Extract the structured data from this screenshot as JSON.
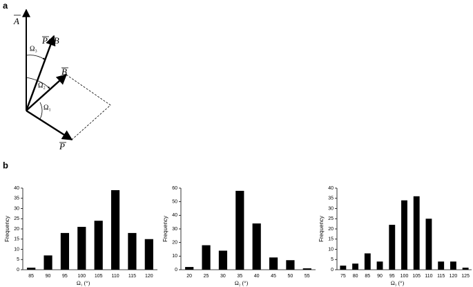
{
  "diagram": {
    "panel_a": "a",
    "panel_b": "b",
    "labels": {
      "A": "A",
      "PxB": "P×B",
      "B": "B",
      "P": "P",
      "omega3": "Ω₃",
      "omega2": "Ω₂",
      "omega1": "Ω₁"
    }
  },
  "chart_data": [
    {
      "type": "bar",
      "x_label": "Ω₁ (°)",
      "y_label": "Frequency",
      "color": "#000000",
      "categories": [
        "85",
        "90",
        "95",
        "100",
        "105",
        "110",
        "115",
        "120"
      ],
      "values": [
        1,
        7,
        18,
        21,
        24,
        39,
        18,
        15
      ],
      "ylim": [
        0,
        40
      ],
      "yticks": [
        0,
        5,
        10,
        15,
        20,
        25,
        30,
        35,
        40
      ]
    },
    {
      "type": "bar",
      "x_label": "Ω₂ (°)",
      "y_label": "Frequency",
      "color": "#000000",
      "categories": [
        "20",
        "25",
        "30",
        "35",
        "40",
        "45",
        "50",
        "55"
      ],
      "values": [
        2,
        18,
        14,
        58,
        34,
        9,
        7,
        1
      ],
      "ylim": [
        0,
        60
      ],
      "yticks": [
        0,
        10,
        20,
        30,
        40,
        50,
        60
      ]
    },
    {
      "type": "bar",
      "x_label": "Ω₃ (°)",
      "y_label": "Frequency",
      "color": "#000000",
      "categories": [
        "75",
        "80",
        "85",
        "90",
        "95",
        "100",
        "105",
        "110",
        "115",
        "120",
        "125"
      ],
      "values": [
        2,
        3,
        8,
        4,
        22,
        34,
        36,
        25,
        4,
        4,
        1
      ],
      "ylim": [
        0,
        40
      ],
      "yticks": [
        0,
        5,
        10,
        15,
        20,
        25,
        30,
        35,
        40
      ]
    }
  ]
}
